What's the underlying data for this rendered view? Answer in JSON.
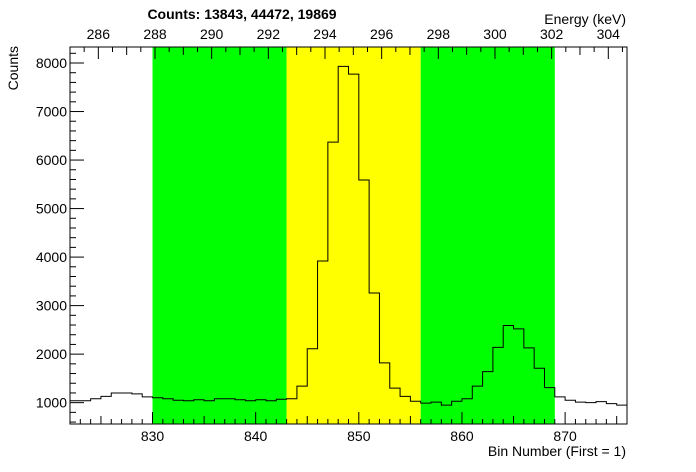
{
  "chart_data": {
    "type": "histogram",
    "title": "Counts:   13843,   44472,   19869",
    "xlabel": "Bin Number (First = 1)",
    "ylabel": "Counts",
    "x2label": "Energy (keV)",
    "xlim": [
      822,
      876
    ],
    "ylim": [
      560,
      8330
    ],
    "x2lim": [
      285.0,
      304.66
    ],
    "x_ticks": [
      830,
      840,
      850,
      860,
      870
    ],
    "x_tick_labels": [
      "830",
      "840",
      "850",
      "860",
      "870"
    ],
    "y_ticks": [
      1000,
      2000,
      3000,
      4000,
      5000,
      6000,
      7000,
      8000
    ],
    "y_tick_labels": [
      "1000",
      "2000",
      "3000",
      "4000",
      "5000",
      "6000",
      "7000",
      "8000"
    ],
    "x2_ticks": [
      286,
      288,
      290,
      292,
      294,
      296,
      298,
      300,
      302,
      304
    ],
    "x2_tick_labels": [
      "286",
      "288",
      "290",
      "292",
      "294",
      "296",
      "298",
      "300",
      "302",
      "304"
    ],
    "regions": [
      {
        "x0": 830,
        "x1": 843,
        "color": "#00ff00"
      },
      {
        "x0": 843,
        "x1": 856,
        "color": "#ffff00"
      },
      {
        "x0": 856,
        "x1": 869,
        "color": "#00ff00"
      }
    ],
    "bin_edges_start": 822,
    "bin_width": 1,
    "values": [
      1040,
      1040,
      1080,
      1130,
      1200,
      1200,
      1180,
      1120,
      1100,
      1080,
      1050,
      1040,
      1060,
      1040,
      1080,
      1080,
      1060,
      1040,
      1060,
      1040,
      1070,
      1080,
      1340,
      2110,
      3920,
      6370,
      7930,
      7770,
      5590,
      3260,
      1820,
      1300,
      1130,
      1030,
      990,
      1010,
      950,
      1030,
      1080,
      1340,
      1640,
      2140,
      2590,
      2520,
      2130,
      1710,
      1310,
      1120,
      1050,
      1010,
      1000,
      1020,
      980,
      950
    ]
  }
}
